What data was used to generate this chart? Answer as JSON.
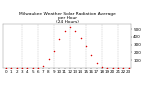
{
  "title": "Milwaukee Weather Solar Radiation Average\nper Hour\n(24 Hours)",
  "hours": [
    0,
    1,
    2,
    3,
    4,
    5,
    6,
    7,
    8,
    9,
    10,
    11,
    12,
    13,
    14,
    15,
    16,
    17,
    18,
    19,
    20,
    21,
    22,
    23
  ],
  "values": [
    0,
    0,
    0,
    0,
    0,
    0,
    0,
    25,
    110,
    220,
    370,
    480,
    520,
    470,
    380,
    280,
    160,
    65,
    8,
    0,
    0,
    0,
    0,
    0
  ],
  "dot_color": "#dd0000",
  "background": "#ffffff",
  "grid_color": "#bbbbbb",
  "text_color": "#000000",
  "ylim": [
    0,
    560
  ],
  "yticks": [
    100,
    200,
    300,
    400,
    500
  ],
  "grid_hours": [
    3,
    6,
    9,
    12,
    15,
    18,
    21
  ],
  "title_fontsize": 3.2,
  "tick_fontsize": 3.0,
  "dot_size": 1.2
}
